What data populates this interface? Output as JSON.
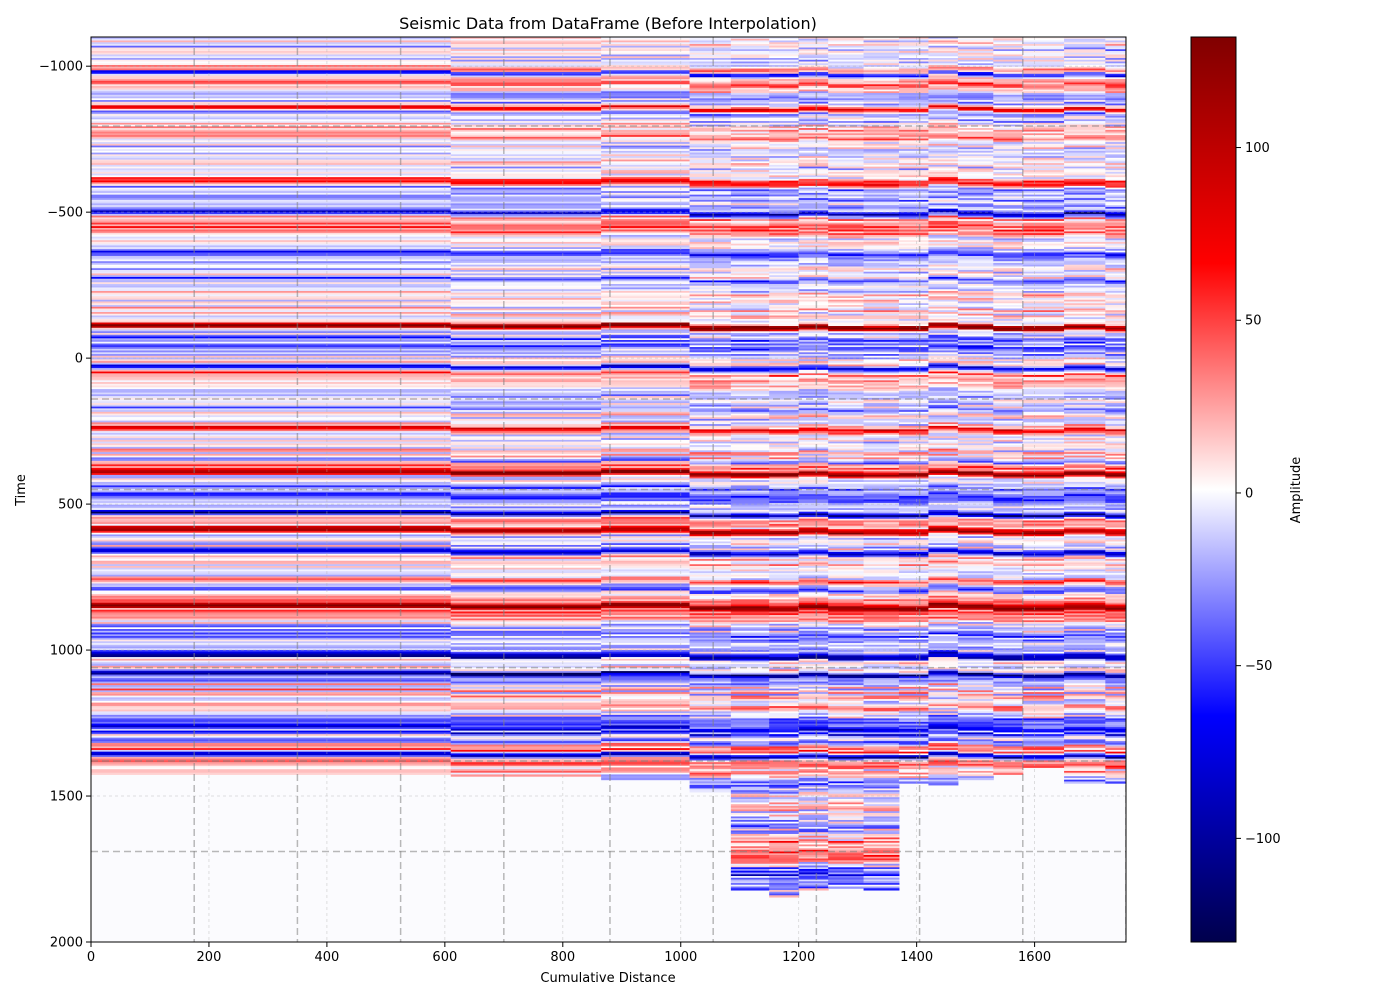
{
  "chart_data": {
    "type": "heatmap",
    "title": "Seismic Data from DataFrame (Before Interpolation)",
    "xlabel": "Cumulative Distance",
    "ylabel": "Time",
    "xlim": [
      0,
      1755
    ],
    "ylim": [
      -1100,
      2000
    ],
    "y_inverted": true,
    "x_ticks": [
      0,
      200,
      400,
      600,
      800,
      1000,
      1200,
      1400,
      1600
    ],
    "x_tick_labels": [
      "0",
      "200",
      "400",
      "600",
      "800",
      "1000",
      "1200",
      "1400",
      "1600"
    ],
    "y_ticks": [
      -1000,
      -500,
      0,
      500,
      1000,
      1500,
      2000
    ],
    "y_tick_labels": [
      "−1000",
      "−500",
      "0",
      "500",
      "1000",
      "1500",
      "2000"
    ],
    "grid": true,
    "colormap": "seismic",
    "colorbar": {
      "label": "Amplitude",
      "range": [
        -130,
        132
      ],
      "ticks": [
        100,
        50,
        0,
        -50,
        -100
      ],
      "tick_labels": [
        "100",
        "50",
        "0",
        "−50",
        "−100"
      ]
    },
    "trace_boundaries_x": [
      0,
      610,
      865,
      1015,
      1085,
      1150,
      1200,
      1250,
      1310,
      1370,
      1420,
      1470,
      1530,
      1580,
      1650,
      1720,
      1755
    ],
    "trace_max_time": [
      1420,
      1430,
      1440,
      1480,
      1820,
      1840,
      1820,
      1810,
      1820,
      1450,
      1460,
      1440,
      1420,
      1400,
      1450,
      1450
    ],
    "vertical_dashed_x": [
      175,
      350,
      525,
      700,
      880,
      1055,
      1230,
      1405,
      1580,
      1755
    ],
    "horizontal_dashed_y": [
      -795,
      140,
      450,
      1060,
      1380,
      1690
    ],
    "dominant_bands": [
      {
        "t": -975,
        "amp": -90
      },
      {
        "t": -860,
        "amp": 125
      },
      {
        "t": -605,
        "amp": 80
      },
      {
        "t": -500,
        "amp": -115
      },
      {
        "t": -270,
        "amp": -60
      },
      {
        "t": -110,
        "amp": 125
      },
      {
        "t": 30,
        "amp": -125
      },
      {
        "t": 240,
        "amp": 70
      },
      {
        "t": 350,
        "amp": -90
      },
      {
        "t": 390,
        "amp": 120
      },
      {
        "t": 530,
        "amp": -125
      },
      {
        "t": 590,
        "amp": 110
      },
      {
        "t": 660,
        "amp": -90
      },
      {
        "t": 760,
        "amp": 110
      },
      {
        "t": 850,
        "amp": 90
      },
      {
        "t": 1020,
        "amp": -120
      },
      {
        "t": 1080,
        "amp": -80
      },
      {
        "t": 1360,
        "amp": -110
      }
    ]
  }
}
